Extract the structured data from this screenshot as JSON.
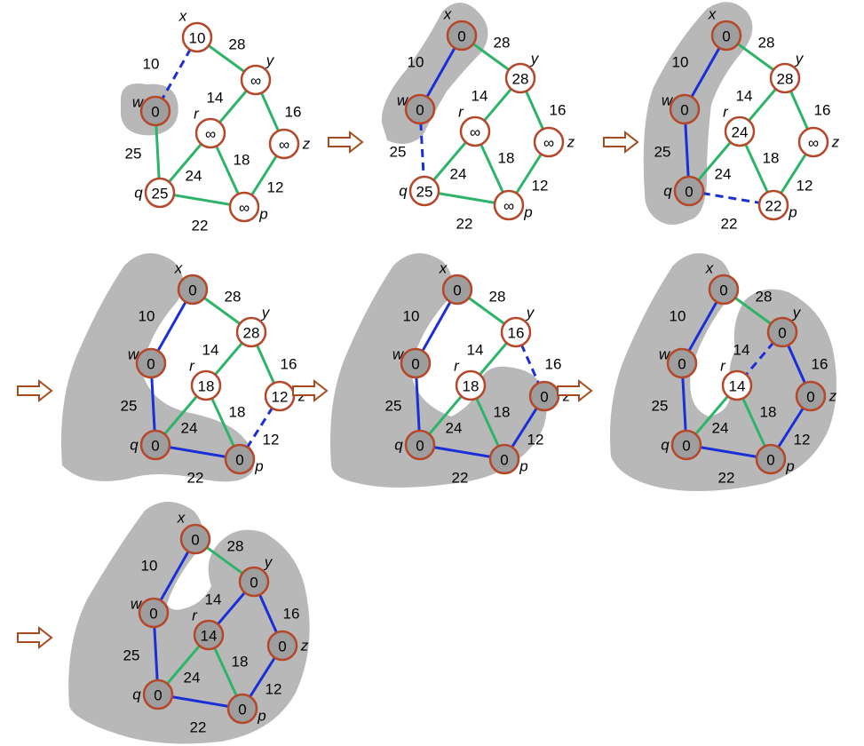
{
  "panels": [
    {
      "id": 1,
      "values": {
        "x": "10",
        "y": "∞",
        "w": "0",
        "r": "∞",
        "z": "∞",
        "q": "25",
        "p": "∞"
      },
      "in_set": [
        "w"
      ],
      "edges": {
        "x-w": "dashed",
        "x-y": "green",
        "y-r": "green",
        "y-z": "green",
        "w-q": "green",
        "r-q": "green",
        "r-p": "green",
        "z-p": "green",
        "q-p": "green"
      }
    },
    {
      "id": 2,
      "values": {
        "x": "0",
        "y": "28",
        "w": "0",
        "r": "∞",
        "z": "∞",
        "q": "25",
        "p": "∞"
      },
      "in_set": [
        "x",
        "w"
      ],
      "edges": {
        "x-w": "blue",
        "x-y": "green",
        "y-r": "green",
        "y-z": "green",
        "w-q": "dashed",
        "r-q": "green",
        "r-p": "green",
        "z-p": "green",
        "q-p": "green"
      }
    },
    {
      "id": 3,
      "values": {
        "x": "0",
        "y": "28",
        "w": "0",
        "r": "24",
        "z": "∞",
        "q": "0",
        "p": "22"
      },
      "in_set": [
        "x",
        "w",
        "q"
      ],
      "edges": {
        "x-w": "blue",
        "x-y": "green",
        "y-r": "green",
        "y-z": "green",
        "w-q": "blue",
        "r-q": "green",
        "r-p": "green",
        "z-p": "green",
        "q-p": "dashed"
      }
    },
    {
      "id": 4,
      "values": {
        "x": "0",
        "y": "28",
        "w": "0",
        "r": "18",
        "z": "12",
        "q": "0",
        "p": "0"
      },
      "in_set": [
        "x",
        "w",
        "q",
        "p"
      ],
      "edges": {
        "x-w": "blue",
        "x-y": "green",
        "y-r": "green",
        "y-z": "green",
        "w-q": "blue",
        "r-q": "green",
        "r-p": "green",
        "z-p": "dashed",
        "q-p": "blue"
      }
    },
    {
      "id": 5,
      "values": {
        "x": "0",
        "y": "16",
        "w": "0",
        "r": "18",
        "z": "0",
        "q": "0",
        "p": "0"
      },
      "in_set": [
        "x",
        "w",
        "q",
        "p",
        "z"
      ],
      "edges": {
        "x-w": "blue",
        "x-y": "green",
        "y-r": "green",
        "y-z": "dashed",
        "w-q": "blue",
        "r-q": "green",
        "r-p": "green",
        "z-p": "blue",
        "q-p": "blue"
      }
    },
    {
      "id": 6,
      "values": {
        "x": "0",
        "y": "0",
        "w": "0",
        "r": "14",
        "z": "0",
        "q": "0",
        "p": "0"
      },
      "in_set": [
        "x",
        "w",
        "q",
        "p",
        "z",
        "y"
      ],
      "edges": {
        "x-w": "blue",
        "x-y": "green",
        "y-r": "dashed",
        "y-z": "blue",
        "w-q": "blue",
        "r-q": "green",
        "r-p": "green",
        "z-p": "blue",
        "q-p": "blue"
      }
    },
    {
      "id": 7,
      "values": {
        "x": "0",
        "y": "0",
        "w": "0",
        "r": "14",
        "z": "0",
        "q": "0",
        "p": "0"
      },
      "in_set": [
        "x",
        "w",
        "q",
        "p",
        "z",
        "y",
        "r"
      ],
      "edges": {
        "x-w": "blue",
        "x-y": "green",
        "y-r": "blue",
        "y-z": "blue",
        "w-q": "blue",
        "r-q": "green",
        "r-p": "green",
        "z-p": "blue",
        "q-p": "blue"
      }
    }
  ],
  "node_names": {
    "x": "x",
    "y": "y",
    "w": "w",
    "r": "r",
    "z": "z",
    "q": "q",
    "p": "p"
  },
  "edge_weights": {
    "x-w": "10",
    "x-y": "28",
    "y-r": "14",
    "y-z": "16",
    "w-q": "25",
    "r-q": "24",
    "r-p": "18",
    "z-p": "12",
    "q-p": "22"
  },
  "colors": {
    "node_stroke": "#b5472a",
    "green_edge": "#2eb36a",
    "blue_edge": "#1a2fd8",
    "blob": "#b8b8b8",
    "node_in_set": "#9e9e9e",
    "arrow_stroke": "#a64a1f"
  }
}
